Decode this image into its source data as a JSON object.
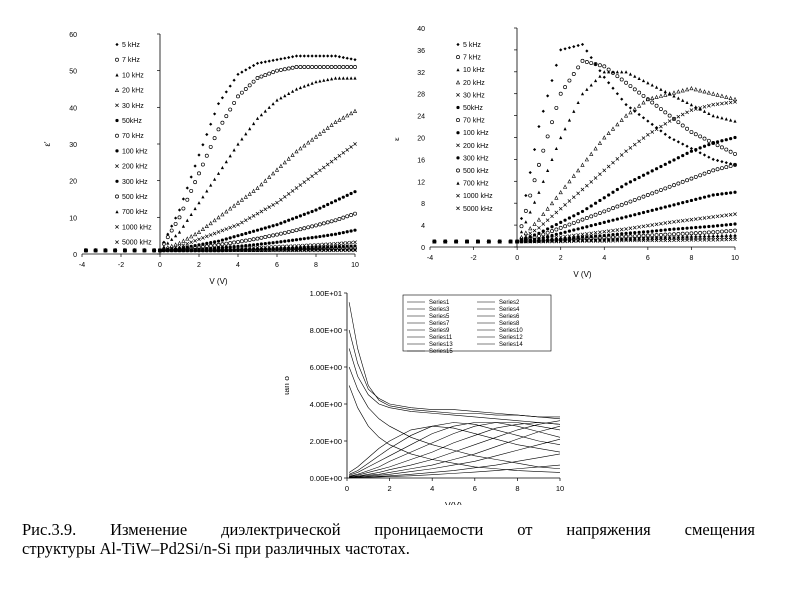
{
  "caption": {
    "line1": "Рис.3.9. Изменение диэлектрической проницаемости от напряжения смещения",
    "line2": "структуры Al-TiW–Pd2Si/n-Si при различных частотах."
  },
  "chart_data": [
    {
      "id": "eps-real",
      "type": "scatter",
      "xlabel": "V (V)",
      "ylabel": "ε'",
      "xlim": [
        -4,
        10
      ],
      "ylim": [
        0,
        60
      ],
      "xticks": [
        "-4",
        "-2",
        "0",
        "2",
        "4",
        "6",
        "8",
        "10"
      ],
      "yticks": [
        "0",
        "10",
        "20",
        "30",
        "40",
        "50",
        "60"
      ],
      "legend_position": "top-left",
      "legend": [
        "5 kHz",
        "7 kHz",
        "10 kHz",
        "20 kHz",
        "30 kHz",
        "50kHz",
        "70 kHz",
        "100 kHz",
        "200 kHz",
        "300 kHz",
        "500 kHz",
        "700 kHz",
        "1000 kHz",
        "5000 kHz"
      ],
      "x": [
        0,
        1,
        2,
        3,
        4,
        5,
        6,
        7,
        8,
        9,
        10
      ],
      "series": [
        {
          "name": "5 kHz",
          "values": [
            1,
            12,
            27,
            41,
            49,
            52,
            53,
            54,
            54,
            54,
            53
          ]
        },
        {
          "name": "7 kHz",
          "values": [
            1,
            10,
            22,
            34,
            43,
            48,
            50,
            51,
            51,
            51,
            51
          ]
        },
        {
          "name": "10 kHz",
          "values": [
            1,
            6,
            14,
            22,
            30,
            37,
            42,
            45,
            47,
            48,
            48
          ]
        },
        {
          "name": "20 kHz",
          "values": [
            1,
            3,
            6,
            10,
            14,
            18,
            23,
            28,
            32,
            36,
            39
          ]
        },
        {
          "name": "30 kHz",
          "values": [
            1,
            2,
            4,
            6,
            8,
            11,
            14,
            18,
            22,
            26,
            30
          ]
        },
        {
          "name": "50kHz",
          "values": [
            1,
            1.5,
            2.5,
            3.5,
            5,
            6.5,
            8,
            10,
            12,
            14.5,
            17
          ]
        },
        {
          "name": "70 kHz",
          "values": [
            1,
            1.2,
            1.8,
            2.5,
            3.3,
            4.2,
            5.3,
            6.5,
            7.8,
            9.2,
            11
          ]
        },
        {
          "name": "100 kHz",
          "values": [
            1,
            1,
            1.3,
            1.7,
            2.1,
            2.6,
            3.2,
            3.9,
            4.6,
            5.4,
            6.5
          ]
        },
        {
          "name": "200 kHz",
          "values": [
            1,
            1,
            1.1,
            1.3,
            1.5,
            1.7,
            2,
            2.2,
            2.5,
            2.8,
            3.2
          ]
        },
        {
          "name": "300 kHz",
          "values": [
            1,
            1,
            1,
            1.1,
            1.2,
            1.4,
            1.5,
            1.7,
            1.8,
            2,
            2.2
          ]
        },
        {
          "name": "500 kHz",
          "values": [
            1,
            1,
            1,
            1,
            1.1,
            1.1,
            1.2,
            1.3,
            1.4,
            1.5,
            1.6
          ]
        },
        {
          "name": "700 kHz",
          "values": [
            1,
            1,
            1,
            1,
            1,
            1,
            1.1,
            1.1,
            1.2,
            1.2,
            1.3
          ]
        },
        {
          "name": "1000 kHz",
          "values": [
            1,
            1,
            1,
            1,
            1,
            1,
            1,
            1,
            1,
            1.1,
            1.1
          ]
        },
        {
          "name": "5000 kHz",
          "values": [
            1,
            1,
            1,
            1,
            1,
            1,
            1,
            1,
            1,
            1,
            1
          ]
        }
      ]
    },
    {
      "id": "eps-imag",
      "type": "scatter",
      "xlabel": "V (V)",
      "ylabel": "ε''",
      "xlim": [
        -4,
        10
      ],
      "ylim": [
        0,
        40
      ],
      "xticks": [
        "-4",
        "-2",
        "0",
        "2",
        "4",
        "6",
        "8",
        "10"
      ],
      "yticks": [
        "0",
        "4",
        "8",
        "12",
        "16",
        "20",
        "24",
        "28",
        "32",
        "36",
        "40"
      ],
      "legend_position": "top-left",
      "legend": [
        "5 kHz",
        "7 kHz",
        "10 kHz",
        "20 kHz",
        "30 kHz",
        "50kHz",
        "70 kHz",
        "100 kHz",
        "200 kHz",
        "300 kHz",
        "500 kHz",
        "700 kHz",
        "1000 kHz",
        "5000 kHz"
      ],
      "x": [
        0,
        1,
        2,
        3,
        4,
        5,
        6,
        7,
        8,
        9,
        10
      ],
      "series": [
        {
          "name": "5 kHz",
          "values": [
            1,
            22,
            36,
            37,
            31,
            26,
            23,
            20,
            18,
            16,
            15
          ]
        },
        {
          "name": "7 kHz",
          "values": [
            1,
            15,
            28,
            34,
            33,
            30,
            27,
            24,
            21,
            19,
            17
          ]
        },
        {
          "name": "10 kHz",
          "values": [
            1,
            10,
            20,
            28,
            32,
            32,
            30,
            28,
            26,
            24,
            23
          ]
        },
        {
          "name": "20 kHz",
          "values": [
            1,
            5,
            10,
            15,
            20,
            24,
            27,
            28,
            29,
            28,
            27
          ]
        },
        {
          "name": "30 kHz",
          "values": [
            1,
            3.5,
            7,
            10.5,
            14,
            17.5,
            20.5,
            23,
            25,
            26,
            26.5
          ]
        },
        {
          "name": "50kHz",
          "values": [
            1,
            2.5,
            4.5,
            6.5,
            9,
            11.5,
            13.5,
            15.5,
            17.5,
            19,
            20
          ]
        },
        {
          "name": "70 kHz",
          "values": [
            1,
            2,
            3.5,
            5,
            6.5,
            8,
            9.5,
            11,
            12.5,
            14,
            15
          ]
        },
        {
          "name": "100 kHz",
          "values": [
            1,
            1.5,
            2.5,
            3.5,
            4.5,
            5.5,
            6.5,
            7.5,
            8.5,
            9.5,
            10
          ]
        },
        {
          "name": "200 kHz",
          "values": [
            1,
            1.3,
            1.8,
            2.3,
            2.8,
            3.3,
            3.9,
            4.5,
            5,
            5.5,
            6
          ]
        },
        {
          "name": "300 kHz",
          "values": [
            1,
            1.2,
            1.5,
            1.8,
            2.1,
            2.5,
            2.8,
            3.2,
            3.5,
            3.8,
            4.2
          ]
        },
        {
          "name": "500 kHz",
          "values": [
            1,
            1.1,
            1.3,
            1.5,
            1.7,
            1.9,
            2.1,
            2.3,
            2.5,
            2.7,
            3
          ]
        },
        {
          "name": "700 kHz",
          "values": [
            1,
            1.1,
            1.2,
            1.3,
            1.4,
            1.6,
            1.7,
            1.8,
            2,
            2.1,
            2.2
          ]
        },
        {
          "name": "1000 kHz",
          "values": [
            1,
            1,
            1.1,
            1.2,
            1.3,
            1.4,
            1.5,
            1.6,
            1.6,
            1.7,
            1.8
          ]
        },
        {
          "name": "5000 kHz",
          "values": [
            1,
            1,
            1,
            1.1,
            1.1,
            1.2,
            1.2,
            1.2,
            1.3,
            1.3,
            1.4
          ]
        }
      ]
    },
    {
      "id": "tan-delta",
      "type": "line",
      "xlabel": "V(V)",
      "ylabel": "tan δ",
      "xlim": [
        0,
        10
      ],
      "ylim": [
        0,
        10
      ],
      "xticks": [
        "0",
        "2",
        "4",
        "6",
        "8",
        "10"
      ],
      "yticks": [
        "0.00E+00",
        "2.00E+00",
        "4.00E+00",
        "6.00E+00",
        "8.00E+00",
        "1.00E+01"
      ],
      "legend_position": "top-right",
      "legend": [
        "Series1",
        "Series2",
        "Series3",
        "Series4",
        "Series5",
        "Series6",
        "Series7",
        "Series8",
        "Series9",
        "Series10",
        "Series11",
        "Series12",
        "Series13",
        "Series14",
        "Series15"
      ],
      "x": [
        0.1,
        0.5,
        1,
        1.5,
        2,
        3,
        4,
        5,
        6,
        7,
        8,
        9,
        10
      ],
      "series": [
        {
          "name": "Series1",
          "values": [
            9.5,
            7,
            5,
            4.2,
            3.9,
            3.7,
            3.6,
            3.5,
            3.5,
            3.4,
            3.4,
            3.3,
            3.3
          ]
        },
        {
          "name": "Series2",
          "values": [
            8,
            6.2,
            4.8,
            4.3,
            4,
            3.8,
            3.7,
            3.7,
            3.6,
            3.5,
            3.4,
            3.3,
            3.2
          ]
        },
        {
          "name": "Series3",
          "values": [
            7,
            5.5,
            4.5,
            4,
            3.8,
            3.6,
            3.5,
            3.4,
            3.3,
            3.2,
            3.1,
            3,
            2.9
          ]
        },
        {
          "name": "Series4",
          "values": [
            6,
            4.8,
            3.8,
            3.2,
            2.8,
            2.2,
            1.8,
            1.5,
            1.2,
            1,
            0.8,
            0.6,
            0.5
          ]
        },
        {
          "name": "Series5",
          "values": [
            5,
            3.8,
            2.8,
            2.2,
            1.8,
            1.3,
            1,
            0.8,
            0.6,
            0.5,
            0.4,
            0.35,
            0.3
          ]
        },
        {
          "name": "Series6",
          "values": [
            0.3,
            0.6,
            1.1,
            1.6,
            2,
            2.6,
            2.8,
            2.7,
            2.4,
            2.1,
            1.8,
            1.6,
            1.4
          ]
        },
        {
          "name": "Series7",
          "values": [
            0.2,
            0.4,
            0.8,
            1.2,
            1.6,
            2.3,
            2.8,
            3,
            2.9,
            2.6,
            2.3,
            2,
            1.8
          ]
        },
        {
          "name": "Series8",
          "values": [
            0.15,
            0.3,
            0.6,
            0.9,
            1.2,
            1.8,
            2.4,
            2.8,
            3,
            3,
            2.8,
            2.5,
            2.2
          ]
        },
        {
          "name": "Series9",
          "values": [
            0.1,
            0.2,
            0.4,
            0.6,
            0.9,
            1.4,
            1.9,
            2.4,
            2.8,
            3,
            3,
            2.8,
            2.6
          ]
        },
        {
          "name": "Series10",
          "values": [
            0.08,
            0.15,
            0.3,
            0.45,
            0.6,
            1,
            1.4,
            1.9,
            2.3,
            2.7,
            2.9,
            3,
            2.9
          ]
        },
        {
          "name": "Series11",
          "values": [
            0.06,
            0.1,
            0.2,
            0.3,
            0.45,
            0.7,
            1,
            1.4,
            1.8,
            2.2,
            2.6,
            2.9,
            3.1
          ]
        },
        {
          "name": "Series12",
          "values": [
            0.04,
            0.08,
            0.15,
            0.2,
            0.3,
            0.5,
            0.7,
            1,
            1.3,
            1.7,
            2.1,
            2.5,
            2.8
          ]
        },
        {
          "name": "Series13",
          "values": [
            0.03,
            0.05,
            0.1,
            0.15,
            0.2,
            0.35,
            0.5,
            0.7,
            0.9,
            1.2,
            1.5,
            1.8,
            2.1
          ]
        },
        {
          "name": "Series14",
          "values": [
            0.02,
            0.03,
            0.06,
            0.09,
            0.12,
            0.2,
            0.3,
            0.4,
            0.55,
            0.7,
            0.9,
            1.1,
            1.3
          ]
        },
        {
          "name": "Series15",
          "values": [
            0.01,
            0.02,
            0.04,
            0.06,
            0.08,
            0.12,
            0.18,
            0.25,
            0.32,
            0.4,
            0.5,
            0.6,
            0.7
          ]
        }
      ]
    }
  ]
}
